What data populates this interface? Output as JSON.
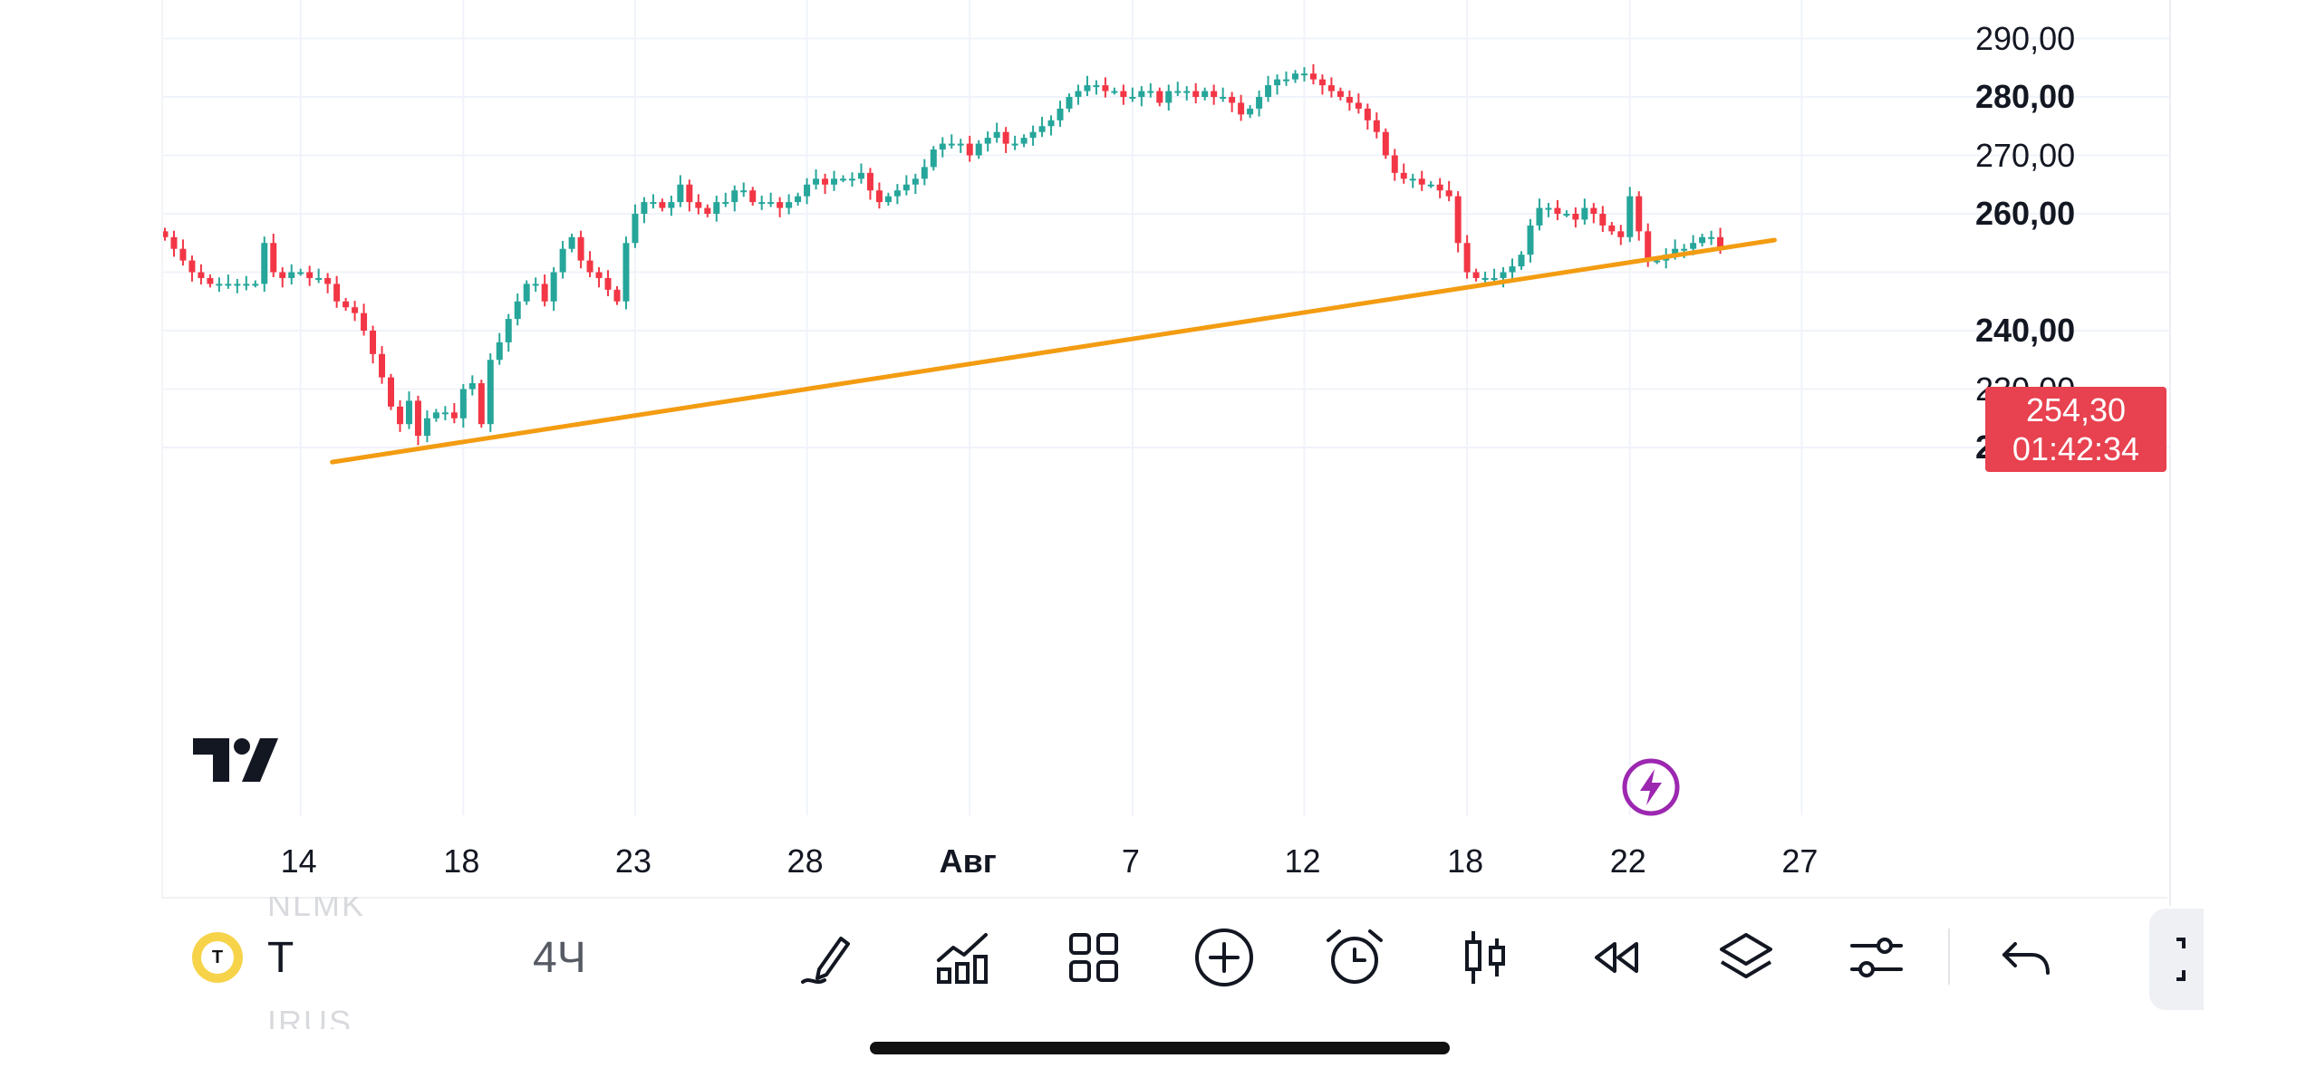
{
  "chart_data": {
    "type": "candlestick",
    "price_axis": {
      "ylim": [
        215,
        296
      ],
      "ticks": [
        {
          "value": 290,
          "label": "290,00",
          "bold": false
        },
        {
          "value": 280,
          "label": "280,00",
          "bold": true
        },
        {
          "value": 270,
          "label": "270,00",
          "bold": false
        },
        {
          "value": 260,
          "label": "260,00",
          "bold": true
        },
        {
          "value": 240,
          "label": "240,00",
          "bold": true
        },
        {
          "value": 230,
          "label": "230,00",
          "bold": false
        },
        {
          "value": 220,
          "label": "220,00",
          "bold": true
        }
      ]
    },
    "time_axis": {
      "ticks": [
        {
          "bar": 15,
          "label": "14",
          "bold": false
        },
        {
          "bar": 33,
          "label": "18",
          "bold": false
        },
        {
          "bar": 52,
          "label": "23",
          "bold": false
        },
        {
          "bar": 71,
          "label": "28",
          "bold": false
        },
        {
          "bar": 89,
          "label": "Авг",
          "bold": true
        },
        {
          "bar": 107,
          "label": "7",
          "bold": false
        },
        {
          "bar": 126,
          "label": "12",
          "bold": false
        },
        {
          "bar": 144,
          "label": "18",
          "bold": false
        },
        {
          "bar": 162,
          "label": "22",
          "bold": false
        },
        {
          "bar": 181,
          "label": "27",
          "bold": false
        }
      ]
    },
    "closes": [
      256,
      254,
      252,
      250,
      249,
      248,
      248,
      248,
      248,
      248,
      248,
      255,
      250,
      249,
      250,
      250,
      249,
      249,
      248,
      245,
      244,
      243,
      240,
      236,
      232,
      227,
      224,
      228,
      222,
      225,
      226,
      226,
      225,
      230,
      231,
      224,
      235,
      238,
      242,
      245,
      248,
      248,
      245,
      250,
      254,
      256,
      252,
      250,
      249,
      247,
      245,
      255,
      260,
      262,
      262,
      261,
      262,
      265,
      262,
      261,
      260,
      262,
      262,
      264,
      264,
      262,
      262,
      262,
      261,
      262,
      263,
      265,
      266,
      265,
      266,
      266,
      266,
      267,
      264,
      262,
      263,
      264,
      265,
      266,
      268,
      271,
      272,
      272,
      272,
      270,
      272,
      273,
      274,
      272,
      272,
      273,
      274,
      275,
      276,
      278,
      280,
      281,
      282,
      282,
      281,
      281,
      280,
      280,
      281,
      281,
      279,
      281,
      281,
      281,
      280,
      281,
      280,
      280,
      279,
      277,
      278,
      280,
      282,
      283,
      283,
      284,
      284,
      283,
      282,
      281,
      280,
      279,
      278,
      276,
      274,
      270,
      267,
      266,
      266,
      265,
      265,
      264,
      263,
      255,
      250,
      249,
      249,
      249,
      250,
      251,
      253,
      258,
      261,
      261,
      260,
      260,
      259,
      261,
      260,
      258,
      257,
      256,
      263,
      257,
      252,
      252,
      253,
      254,
      254,
      255,
      256,
      256,
      254
    ]
  },
  "last_price": {
    "value": 254.3,
    "label": "254,30",
    "countdown": "01:42:34"
  },
  "trendline": {
    "from": {
      "bar": 18.5,
      "price": 217.5
    },
    "to": {
      "bar": 178,
      "price": 255.5
    }
  },
  "colors": {
    "up": "#26a69a",
    "down": "#f23645",
    "trendline": "#f39c12",
    "badge": "#e8414f",
    "flash": "#9c27b0"
  },
  "toolbar": {
    "ghost_symbol_top": "NLMK",
    "symbol": "T",
    "symbol_badge": "T",
    "interval": "4Ч",
    "ghost_symbol_bottom": "IRUS",
    "icons": [
      "drawing-pen-icon",
      "indicators-icon",
      "grid-layout-icon",
      "add-circle-icon",
      "alarm-clock-icon",
      "candlestick-style-icon",
      "replay-rewind-icon",
      "layers-icon",
      "settings-sliders-icon",
      "undo-icon"
    ]
  }
}
